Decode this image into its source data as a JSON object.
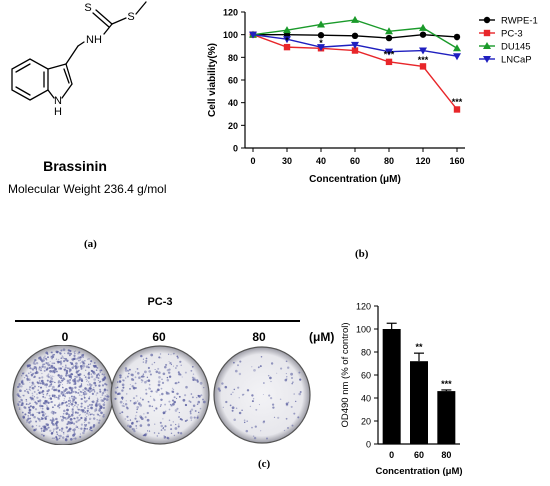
{
  "molecule": {
    "name": "Brassinin",
    "weight_label": "Molecular Weight 236.4 g/mol",
    "atom_labels": {
      "sulfur_top": "S",
      "sulfur_chain": "S",
      "amide_nh": "NH",
      "indole_nh": "N",
      "indole_h": "H"
    }
  },
  "captions": {
    "a": "(a)",
    "b": "(b)",
    "c": "(c)"
  },
  "panel_c": {
    "cell_line": "PC-3",
    "plate_labels": [
      "0",
      "60",
      "80"
    ],
    "unit_label": "(μM)"
  },
  "colors": {
    "rwpe": "#000000",
    "pc3": "#e8262a",
    "du145": "#1a9a2a",
    "lncap": "#1f1fbf",
    "plate_stain": "#5a5fa0",
    "bar": "#000000"
  },
  "chart_data": [
    {
      "type": "line",
      "title": "",
      "xlabel": "Concentration (μM)",
      "ylabel": "Cell viability(%)",
      "categories": [
        "0",
        "30",
        "40",
        "60",
        "80",
        "120",
        "160"
      ],
      "ylim": [
        0,
        120
      ],
      "yticks": [
        0,
        20,
        40,
        60,
        80,
        100,
        120
      ],
      "legend_position": "right",
      "series": [
        {
          "name": "RWPE-1",
          "marker": "circle",
          "values": [
            100,
            100,
            99.5,
            99,
            97,
            100,
            98
          ]
        },
        {
          "name": "PC-3",
          "marker": "square",
          "values": [
            100,
            89,
            88,
            86,
            76,
            72,
            34
          ]
        },
        {
          "name": "DU145",
          "marker": "triangle-up",
          "values": [
            100,
            104,
            109,
            113,
            103,
            106,
            88
          ]
        },
        {
          "name": "LNCaP",
          "marker": "triangle-down",
          "values": [
            100,
            96,
            89,
            91,
            85,
            86,
            81
          ]
        }
      ],
      "annotations": [
        {
          "x": "30",
          "text": "*"
        },
        {
          "x": "40",
          "text": "*"
        },
        {
          "x": "80",
          "text": "***"
        },
        {
          "x": "120",
          "text": "***"
        },
        {
          "x": "160",
          "text": "*"
        },
        {
          "x": "160",
          "text": "***"
        }
      ]
    },
    {
      "type": "bar",
      "title": "",
      "xlabel": "Concentration (μM)",
      "ylabel": "OD490 nm (% of control)",
      "categories": [
        "0",
        "60",
        "80"
      ],
      "values": [
        100,
        72,
        46
      ],
      "errors": [
        5,
        7,
        1
      ],
      "significance": [
        "",
        "**",
        "***"
      ],
      "ylim": [
        0,
        120
      ],
      "yticks": [
        0,
        20,
        40,
        60,
        80,
        100,
        120
      ]
    }
  ]
}
